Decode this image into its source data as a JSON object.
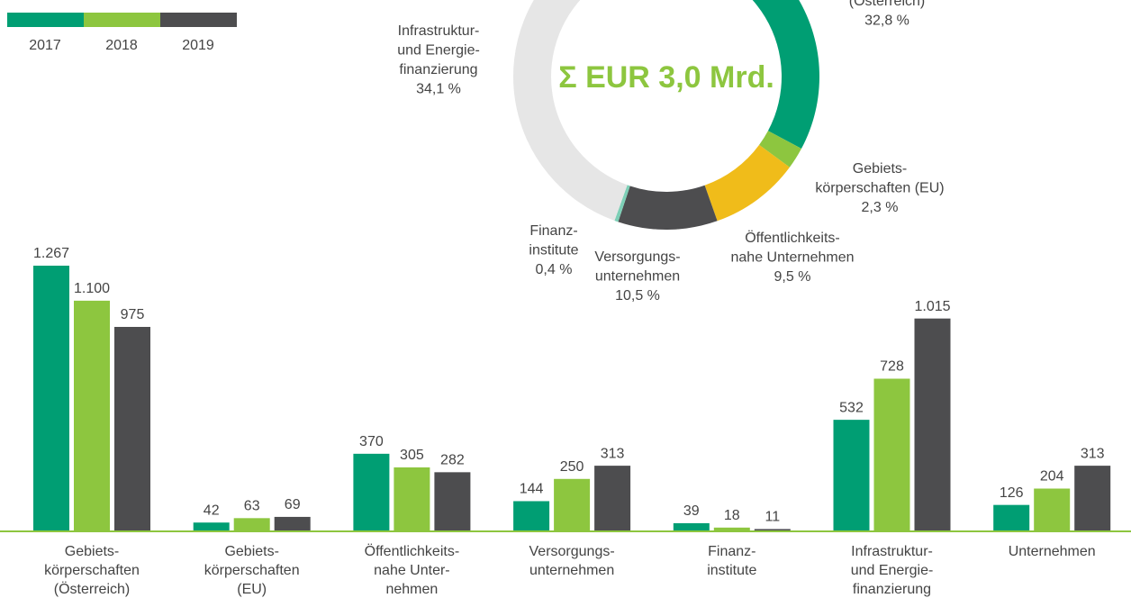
{
  "chart_data": [
    {
      "type": "bar",
      "categories": [
        [
          "Gebiets-",
          "körperschaften",
          "(Österreich)"
        ],
        [
          "Gebiets-",
          "körperschaften",
          "(EU)"
        ],
        [
          "Öffentlichkeits-",
          "nahe Unter-",
          "nehmen"
        ],
        [
          "Versorgungs-",
          "unternehmen"
        ],
        [
          "Finanz-",
          "institute"
        ],
        [
          "Infrastruktur-",
          "und Energie-",
          "finanzierung"
        ],
        [
          "Unternehmen"
        ]
      ],
      "series": [
        {
          "name": "2017",
          "color": "#009e73",
          "values": [
            1267,
            42,
            370,
            144,
            39,
            532,
            126
          ],
          "value_labels": [
            "1.267",
            "42",
            "370",
            "144",
            "39",
            "532",
            "126"
          ]
        },
        {
          "name": "2018",
          "color": "#8dc63f",
          "values": [
            1100,
            63,
            305,
            250,
            18,
            728,
            204
          ],
          "value_labels": [
            "1.100",
            "63",
            "305",
            "250",
            "18",
            "728",
            "204"
          ]
        },
        {
          "name": "2019",
          "color": "#4d4d4f",
          "values": [
            975,
            69,
            282,
            313,
            11,
            1015,
            313
          ],
          "value_labels": [
            "975",
            "69",
            "282",
            "313",
            "11",
            "1.015",
            "313"
          ]
        }
      ]
    },
    {
      "type": "donut",
      "center_label": "Σ EUR 3,0 Mrd.",
      "labels": [
        [
          "(Österreich)"
        ],
        [
          "Gebiets-",
          "körperschaften (EU)"
        ],
        [
          "Öffentlichkeits-",
          "nahe Unternehmen"
        ],
        [
          "Versorgungs-",
          "unternehmen"
        ],
        [
          "Finanz-",
          "institute"
        ],
        [
          "Infrastruktur-",
          "und Energie-",
          "finanzierung"
        ]
      ],
      "values": [
        32.8,
        2.3,
        9.5,
        10.5,
        0.4,
        34.1
      ],
      "value_labels": [
        "32,8 %",
        "2,3  %",
        "9,5 %",
        "10,5 %",
        "0,4 %",
        "34,1 %"
      ],
      "colors": [
        "#009e73",
        "#8dc63f",
        "#f0bc1a",
        "#4d4d4f",
        "#7dcfb6",
        "#e6e6e6"
      ]
    }
  ]
}
